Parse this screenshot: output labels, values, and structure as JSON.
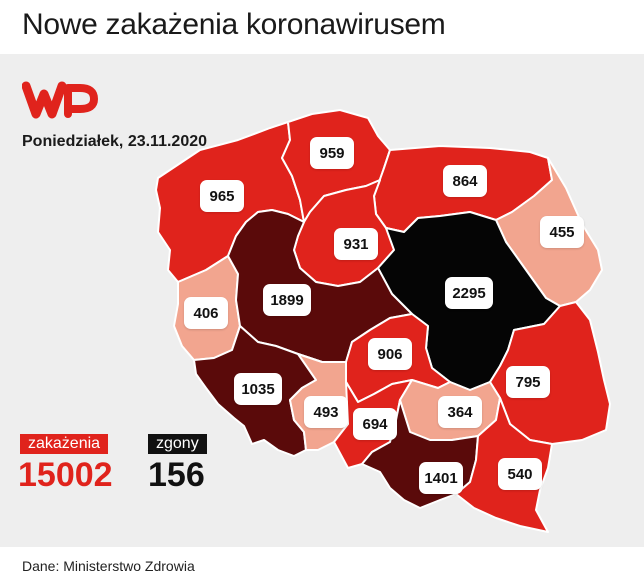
{
  "title": "Nowe zakażenia koronawirusem",
  "date_label": "Poniedziałek, 23.11.2020",
  "logo_name": "wp-logo",
  "map": {
    "colors": {
      "low": "#f2a58f",
      "mid": "#e0231c",
      "high": "#5a0a0a",
      "top": "#050505",
      "border": "#ffffff"
    },
    "regions": [
      {
        "id": "zachodniopomorskie",
        "value": "965",
        "level": "mid"
      },
      {
        "id": "pomorskie",
        "value": "959",
        "level": "mid"
      },
      {
        "id": "warminsko-mazurskie",
        "value": "864",
        "level": "mid"
      },
      {
        "id": "podlaskie",
        "value": "455",
        "level": "low"
      },
      {
        "id": "kujawsko-pomorskie",
        "value": "931",
        "level": "mid"
      },
      {
        "id": "mazowieckie",
        "value": "2295",
        "level": "top"
      },
      {
        "id": "lubuskie",
        "value": "406",
        "level": "low"
      },
      {
        "id": "wielkopolskie",
        "value": "1899",
        "level": "high"
      },
      {
        "id": "lodzkie",
        "value": "906",
        "level": "mid"
      },
      {
        "id": "lubelskie",
        "value": "795",
        "level": "mid"
      },
      {
        "id": "dolnoslaskie",
        "value": "1035",
        "level": "high"
      },
      {
        "id": "opolskie",
        "value": "493",
        "level": "low"
      },
      {
        "id": "slaskie",
        "value": "694",
        "level": "mid"
      },
      {
        "id": "swietokrzyskie",
        "value": "364",
        "level": "low"
      },
      {
        "id": "malopolskie",
        "value": "1401",
        "level": "high"
      },
      {
        "id": "podkarpackie",
        "value": "540",
        "level": "mid"
      }
    ]
  },
  "totals": {
    "infections_label": "zakażenia",
    "infections_value": "15002",
    "deaths_label": "zgony",
    "deaths_value": "156",
    "infections_color": "#e0231c",
    "deaths_color": "#111111"
  },
  "source": "Dane: Ministerstwo Zdrowia"
}
